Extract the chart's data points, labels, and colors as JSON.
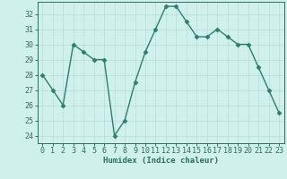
{
  "x": [
    0,
    1,
    2,
    3,
    4,
    5,
    6,
    7,
    8,
    9,
    10,
    11,
    12,
    13,
    14,
    15,
    16,
    17,
    18,
    19,
    20,
    21,
    22,
    23
  ],
  "y": [
    28,
    27,
    26,
    30,
    29.5,
    29,
    29,
    24,
    25,
    27.5,
    29.5,
    31,
    32.5,
    32.5,
    31.5,
    30.5,
    30.5,
    31,
    30.5,
    30,
    30,
    28.5,
    27,
    25.5
  ],
  "line_color": "#2e7d6e",
  "marker": "D",
  "marker_size": 2.5,
  "bg_color": "#cff0eb",
  "grid_color": "#b8dcd8",
  "xlabel": "Humidex (Indice chaleur)",
  "ylim": [
    23.5,
    32.8
  ],
  "xlim": [
    -0.5,
    23.5
  ],
  "yticks": [
    24,
    25,
    26,
    27,
    28,
    29,
    30,
    31,
    32
  ],
  "xticks": [
    0,
    1,
    2,
    3,
    4,
    5,
    6,
    7,
    8,
    9,
    10,
    11,
    12,
    13,
    14,
    15,
    16,
    17,
    18,
    19,
    20,
    21,
    22,
    23
  ],
  "xlabel_fontsize": 6.5,
  "tick_fontsize": 6,
  "axis_color": "#2e6b60",
  "spine_color": "#2e6b60",
  "line_width": 1.0
}
